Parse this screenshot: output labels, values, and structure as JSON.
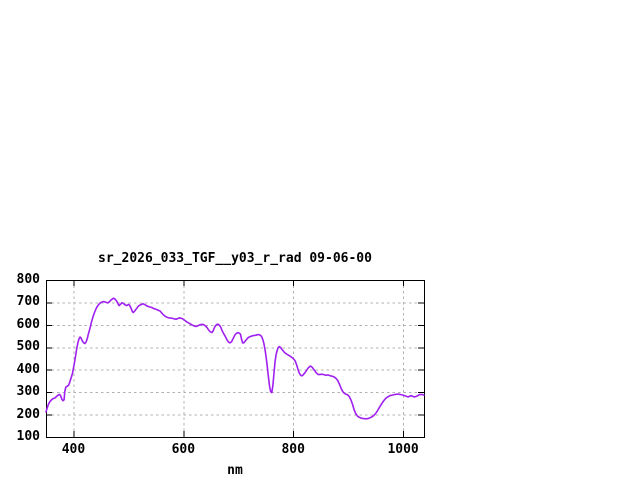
{
  "chart_data": {
    "type": "line",
    "title": "sr_2026_033_TGF__y03_r_rad 09-06-00",
    "xlabel": "nm",
    "ylabel": "",
    "xlim": [
      350,
      1038
    ],
    "ylim": [
      100,
      800
    ],
    "x_ticks": [
      400,
      600,
      800,
      1000
    ],
    "y_ticks": [
      100,
      200,
      300,
      400,
      500,
      600,
      700,
      800
    ],
    "grid": true,
    "legend_position": "none",
    "line_color": "#a020f0",
    "grid_color": "#b0b0b0",
    "border_color": "#000000",
    "background_color": "#ffffff",
    "series": [
      {
        "name": "sr_2026_033_TGF__y03_r_rad",
        "points": [
          [
            350,
            212
          ],
          [
            352,
            228
          ],
          [
            354,
            243
          ],
          [
            357,
            257
          ],
          [
            360,
            266
          ],
          [
            363,
            271
          ],
          [
            366,
            274
          ],
          [
            369,
            280
          ],
          [
            372,
            287
          ],
          [
            375,
            290
          ],
          [
            377,
            282
          ],
          [
            379,
            268
          ],
          [
            381,
            262
          ],
          [
            383,
            266
          ],
          [
            384,
            300
          ],
          [
            386,
            322
          ],
          [
            389,
            327
          ],
          [
            391,
            330
          ],
          [
            393,
            342
          ],
          [
            395,
            358
          ],
          [
            398,
            382
          ],
          [
            400,
            408
          ],
          [
            402,
            435
          ],
          [
            404,
            465
          ],
          [
            406,
            495
          ],
          [
            408,
            520
          ],
          [
            410,
            538
          ],
          [
            412,
            546
          ],
          [
            414,
            540
          ],
          [
            416,
            528
          ],
          [
            419,
            519
          ],
          [
            421,
            517
          ],
          [
            423,
            524
          ],
          [
            425,
            538
          ],
          [
            427,
            558
          ],
          [
            430,
            585
          ],
          [
            433,
            615
          ],
          [
            436,
            640
          ],
          [
            439,
            660
          ],
          [
            442,
            676
          ],
          [
            445,
            688
          ],
          [
            448,
            696
          ],
          [
            451,
            701
          ],
          [
            455,
            704
          ],
          [
            459,
            701
          ],
          [
            462,
            698
          ],
          [
            465,
            702
          ],
          [
            468,
            710
          ],
          [
            471,
            716
          ],
          [
            473,
            719
          ],
          [
            476,
            714
          ],
          [
            479,
            704
          ],
          [
            481,
            694
          ],
          [
            483,
            686
          ],
          [
            486,
            692
          ],
          [
            488,
            699
          ],
          [
            491,
            695
          ],
          [
            494,
            689
          ],
          [
            497,
            686
          ],
          [
            500,
            691
          ],
          [
            502,
            688
          ],
          [
            505,
            673
          ],
          [
            507,
            659
          ],
          [
            509,
            655
          ],
          [
            512,
            663
          ],
          [
            515,
            674
          ],
          [
            518,
            683
          ],
          [
            521,
            688
          ],
          [
            524,
            691
          ],
          [
            527,
            694
          ],
          [
            530,
            690
          ],
          [
            534,
            684
          ],
          [
            538,
            680
          ],
          [
            542,
            678
          ],
          [
            546,
            673
          ],
          [
            550,
            670
          ],
          [
            554,
            666
          ],
          [
            558,
            661
          ],
          [
            561,
            652
          ],
          [
            564,
            644
          ],
          [
            567,
            638
          ],
          [
            570,
            634
          ],
          [
            574,
            631
          ],
          [
            578,
            630
          ],
          [
            582,
            628
          ],
          [
            586,
            625
          ],
          [
            589,
            627
          ],
          [
            592,
            631
          ],
          [
            595,
            630
          ],
          [
            598,
            628
          ],
          [
            601,
            623
          ],
          [
            604,
            617
          ],
          [
            607,
            612
          ],
          [
            610,
            608
          ],
          [
            613,
            604
          ],
          [
            616,
            600
          ],
          [
            619,
            596
          ],
          [
            622,
            593
          ],
          [
            625,
            594
          ],
          [
            628,
            598
          ],
          [
            631,
            601
          ],
          [
            634,
            602
          ],
          [
            637,
            601
          ],
          [
            640,
            596
          ],
          [
            643,
            588
          ],
          [
            646,
            577
          ],
          [
            649,
            569
          ],
          [
            652,
            566
          ],
          [
            654,
            572
          ],
          [
            656,
            584
          ],
          [
            658,
            594
          ],
          [
            660,
            600
          ],
          [
            662,
            603
          ],
          [
            664,
            602
          ],
          [
            666,
            597
          ],
          [
            668,
            590
          ],
          [
            670,
            578
          ],
          [
            672,
            567
          ],
          [
            674,
            558
          ],
          [
            676,
            550
          ],
          [
            678,
            540
          ],
          [
            680,
            531
          ],
          [
            682,
            524
          ],
          [
            684,
            520
          ],
          [
            686,
            521
          ],
          [
            688,
            526
          ],
          [
            690,
            536
          ],
          [
            692,
            546
          ],
          [
            694,
            555
          ],
          [
            696,
            561
          ],
          [
            698,
            564
          ],
          [
            700,
            565
          ],
          [
            702,
            563
          ],
          [
            704,
            558
          ],
          [
            706,
            535
          ],
          [
            708,
            519
          ],
          [
            710,
            520
          ],
          [
            712,
            526
          ],
          [
            714,
            532
          ],
          [
            716,
            538
          ],
          [
            718,
            543
          ],
          [
            720,
            546
          ],
          [
            723,
            549
          ],
          [
            726,
            551
          ],
          [
            729,
            553
          ],
          [
            732,
            554
          ],
          [
            735,
            556
          ],
          [
            738,
            556
          ],
          [
            741,
            552
          ],
          [
            743,
            545
          ],
          [
            745,
            532
          ],
          [
            747,
            512
          ],
          [
            749,
            485
          ],
          [
            751,
            450
          ],
          [
            753,
            410
          ],
          [
            755,
            365
          ],
          [
            757,
            325
          ],
          [
            759,
            302
          ],
          [
            761,
            298
          ],
          [
            763,
            330
          ],
          [
            765,
            385
          ],
          [
            767,
            438
          ],
          [
            769,
            470
          ],
          [
            771,
            488
          ],
          [
            773,
            500
          ],
          [
            775,
            503
          ],
          [
            777,
            499
          ],
          [
            779,
            492
          ],
          [
            781,
            486
          ],
          [
            783,
            480
          ],
          [
            785,
            475
          ],
          [
            788,
            470
          ],
          [
            791,
            465
          ],
          [
            794,
            461
          ],
          [
            797,
            456
          ],
          [
            800,
            450
          ],
          [
            803,
            441
          ],
          [
            805,
            430
          ],
          [
            807,
            415
          ],
          [
            809,
            398
          ],
          [
            811,
            385
          ],
          [
            813,
            377
          ],
          [
            815,
            373
          ],
          [
            817,
            374
          ],
          [
            819,
            380
          ],
          [
            821,
            386
          ],
          [
            823,
            393
          ],
          [
            825,
            400
          ],
          [
            827,
            407
          ],
          [
            829,
            412
          ],
          [
            831,
            416
          ],
          [
            833,
            414
          ],
          [
            835,
            409
          ],
          [
            837,
            402
          ],
          [
            839,
            396
          ],
          [
            841,
            389
          ],
          [
            843,
            383
          ],
          [
            845,
            379
          ],
          [
            848,
            378
          ],
          [
            851,
            380
          ],
          [
            854,
            379
          ],
          [
            857,
            377
          ],
          [
            860,
            375
          ],
          [
            863,
            377
          ],
          [
            866,
            374
          ],
          [
            869,
            372
          ],
          [
            872,
            370
          ],
          [
            875,
            367
          ],
          [
            878,
            361
          ],
          [
            881,
            352
          ],
          [
            884,
            336
          ],
          [
            887,
            318
          ],
          [
            890,
            303
          ],
          [
            893,
            295
          ],
          [
            896,
            291
          ],
          [
            899,
            288
          ],
          [
            902,
            280
          ],
          [
            905,
            266
          ],
          [
            908,
            245
          ],
          [
            911,
            220
          ],
          [
            914,
            203
          ],
          [
            917,
            193
          ],
          [
            920,
            188
          ],
          [
            924,
            184
          ],
          [
            928,
            182
          ],
          [
            932,
            181
          ],
          [
            936,
            182
          ],
          [
            940,
            186
          ],
          [
            944,
            191
          ],
          [
            948,
            199
          ],
          [
            952,
            212
          ],
          [
            956,
            228
          ],
          [
            960,
            244
          ],
          [
            964,
            259
          ],
          [
            968,
            271
          ],
          [
            972,
            279
          ],
          [
            976,
            284
          ],
          [
            980,
            287
          ],
          [
            984,
            289
          ],
          [
            988,
            291
          ],
          [
            992,
            291
          ],
          [
            996,
            289
          ],
          [
            1000,
            287
          ],
          [
            1003,
            284
          ],
          [
            1006,
            281
          ],
          [
            1009,
            279
          ],
          [
            1012,
            282
          ],
          [
            1015,
            284
          ],
          [
            1018,
            280
          ],
          [
            1021,
            279
          ],
          [
            1024,
            281
          ],
          [
            1027,
            285
          ],
          [
            1030,
            289
          ],
          [
            1033,
            290
          ],
          [
            1036,
            288
          ],
          [
            1038,
            287
          ]
        ]
      }
    ]
  }
}
